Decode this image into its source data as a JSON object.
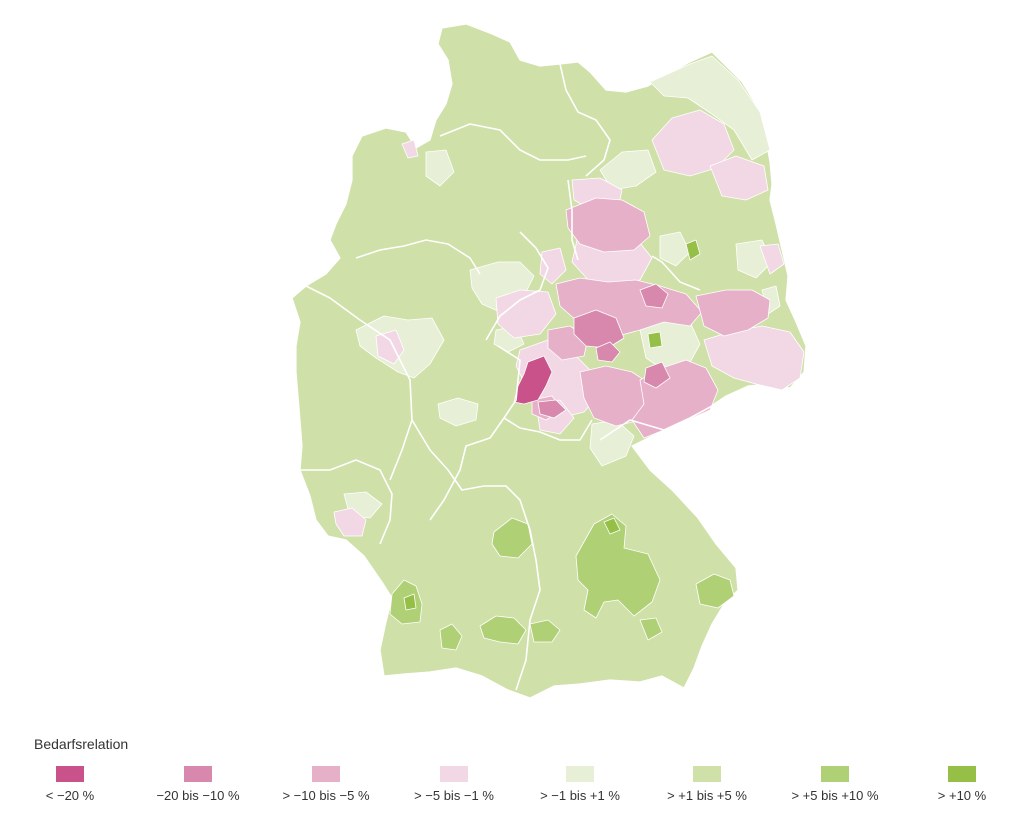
{
  "legend": {
    "title": "Bedarfsrelation",
    "items": [
      {
        "label": "< −20 %",
        "color": "#c9528a"
      },
      {
        "label": "−20 bis −10 %",
        "color": "#d988ad"
      },
      {
        "label": "> −10 bis −5 %",
        "color": "#e6b0c9"
      },
      {
        "label": "> −5 bis −1 %",
        "color": "#f2d8e5"
      },
      {
        "label": "> −1 bis +1 %",
        "color": "#e7efd6"
      },
      {
        "label": "> +1 bis +5 %",
        "color": "#cfe0a8"
      },
      {
        "label": "> +5 bis +10 %",
        "color": "#b0d076"
      },
      {
        "label": "> +10 %",
        "color": "#95bf47"
      }
    ]
  },
  "map_colors": {
    "border": "#ffffff"
  }
}
